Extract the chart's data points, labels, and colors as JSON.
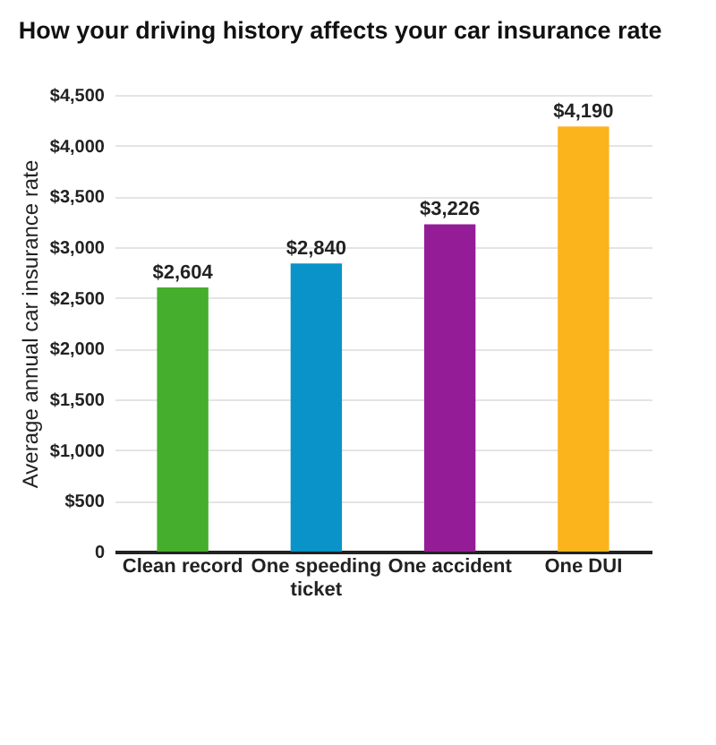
{
  "chart_data": {
    "type": "bar",
    "title": "How your driving history affects your car insurance rate",
    "ylabel": "Average annual car insurance rate",
    "categories": [
      "Clean record",
      "One speeding ticket",
      "One accident",
      "One DUI"
    ],
    "values": [
      2604,
      2840,
      3226,
      4190
    ],
    "colors": [
      "#45ae2c",
      "#0a93c8",
      "#951c97",
      "#fbb41c"
    ],
    "value_labels": [
      "$2,604",
      "$2,840",
      "$3,226",
      "$4,190"
    ],
    "ylim": [
      0,
      4500
    ],
    "yticks": [
      0,
      {
        "value": 500,
        "label": "$500"
      },
      {
        "value": 1000,
        "label": "$1,000"
      },
      {
        "value": 1500,
        "label": "$1,500"
      },
      {
        "value": 2000,
        "label": "$2,000"
      },
      {
        "value": 2500,
        "label": "$2,500"
      },
      {
        "value": 3000,
        "label": "$3,000"
      },
      {
        "value": 3500,
        "label": "$3,500"
      },
      {
        "value": 4000,
        "label": "$4,000"
      },
      {
        "value": 4500,
        "label": "$4,500"
      }
    ],
    "grid": "y"
  }
}
